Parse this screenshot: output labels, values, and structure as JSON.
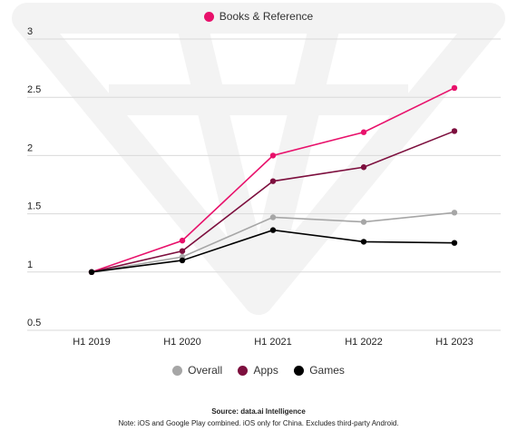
{
  "chart_data": {
    "type": "line",
    "categories": [
      "H1 2019",
      "H1 2020",
      "H1 2021",
      "H1 2022",
      "H1 2023"
    ],
    "ylim": [
      0.5,
      3
    ],
    "yticks": [
      "0.5",
      "1",
      "1.5",
      "2",
      "2.5",
      "3"
    ],
    "grid": true,
    "series": [
      {
        "name": "Books & Reference",
        "color": "#e8116b",
        "values": [
          1.0,
          1.27,
          2.0,
          2.2,
          2.58
        ]
      },
      {
        "name": "Overall",
        "color": "#a6a6a6",
        "values": [
          1.0,
          1.13,
          1.47,
          1.43,
          1.51
        ]
      },
      {
        "name": "Apps",
        "color": "#7d0f3e",
        "values": [
          1.0,
          1.18,
          1.78,
          1.9,
          2.21
        ]
      },
      {
        "name": "Games",
        "color": "#000000",
        "values": [
          1.0,
          1.1,
          1.36,
          1.26,
          1.25
        ]
      }
    ]
  },
  "legend_top": [
    {
      "label": "Books & Reference",
      "color": "#e8116b"
    }
  ],
  "legend_bottom": [
    {
      "label": "Overall",
      "color": "#a6a6a6"
    },
    {
      "label": "Apps",
      "color": "#7d0f3e"
    },
    {
      "label": "Games",
      "color": "#000000"
    }
  ],
  "footer": {
    "source": "Source: data.ai Intelligence",
    "note": "Note: iOS and Google Play combined. iOS only for China. Excludes third-party Android."
  }
}
